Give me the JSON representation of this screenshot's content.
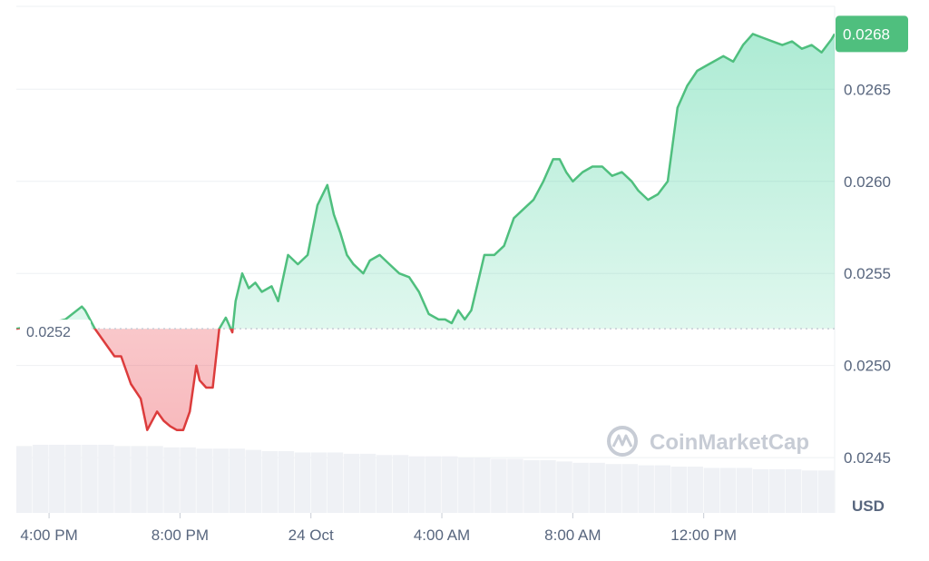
{
  "colors": {
    "up": "#16c784",
    "up_line": "#4fbf7e",
    "down_line": "#dc3c3c",
    "up_fill": "#cfeedd",
    "down_fill": "#f6c9c9",
    "grid": "#eef0f3",
    "volume": "#eff1f5",
    "text": "#58667e"
  },
  "watermark": {
    "text": "CoinMarketCap",
    "icon": "coinmarketcap-logo-icon"
  },
  "chart_data": {
    "type": "area",
    "currency": "USD",
    "ylim": [
      0.0242,
      0.02695
    ],
    "yticks": [
      {
        "value": 0.0245,
        "label": "0.0245"
      },
      {
        "value": 0.025,
        "label": "0.0250"
      },
      {
        "value": 0.0255,
        "label": "0.0255"
      },
      {
        "value": 0.026,
        "label": "0.0260"
      },
      {
        "value": 0.0265,
        "label": "0.0265"
      }
    ],
    "xticks": [
      {
        "hour": 0,
        "label": "4:00 PM"
      },
      {
        "hour": 4,
        "label": "8:00 PM"
      },
      {
        "hour": 8,
        "label": "24 Oct"
      },
      {
        "hour": 12,
        "label": "4:00 AM"
      },
      {
        "hour": 16,
        "label": "8:00 AM"
      },
      {
        "hour": 20,
        "label": "12:00 PM"
      }
    ],
    "baseline": {
      "value": 0.0252,
      "label": "0.0252"
    },
    "last_price": {
      "value": 0.0268,
      "label": "0.0268"
    },
    "x_hours": [
      -1,
      -0.2,
      0.5,
      1.0,
      1.1,
      1.4,
      1.8,
      2.0,
      2.2,
      2.5,
      2.8,
      3.0,
      3.3,
      3.5,
      3.7,
      3.9,
      4.1,
      4.3,
      4.5,
      4.6,
      4.8,
      5.0,
      5.2,
      5.4,
      5.6,
      5.7,
      5.9,
      6.1,
      6.3,
      6.5,
      6.8,
      7.0,
      7.3,
      7.6,
      7.9,
      8.2,
      8.5,
      8.7,
      8.9,
      9.1,
      9.3,
      9.6,
      9.8,
      10.1,
      10.4,
      10.7,
      11.0,
      11.3,
      11.6,
      11.9,
      12.1,
      12.3,
      12.5,
      12.7,
      12.9,
      13.1,
      13.3,
      13.6,
      13.9,
      14.2,
      14.5,
      14.8,
      15.1,
      15.4,
      15.6,
      15.8,
      16.0,
      16.3,
      16.6,
      16.9,
      17.2,
      17.5,
      17.8,
      18.0,
      18.3,
      18.6,
      18.9,
      19.2,
      19.5,
      19.8,
      20.1,
      20.3,
      20.6,
      20.9,
      21.2,
      21.5,
      21.8,
      22.1,
      22.4,
      22.7,
      23.0,
      23.3,
      23.6,
      23.9,
      24.0
    ],
    "price": [
      0.0252,
      0.02522,
      0.02525,
      0.02532,
      0.0253,
      0.0252,
      0.0251,
      0.02505,
      0.02505,
      0.0249,
      0.02482,
      0.02465,
      0.02475,
      0.0247,
      0.02467,
      0.02465,
      0.02465,
      0.02475,
      0.025,
      0.02492,
      0.02488,
      0.02488,
      0.0252,
      0.02526,
      0.02518,
      0.02535,
      0.0255,
      0.02542,
      0.02545,
      0.0254,
      0.02543,
      0.02535,
      0.0256,
      0.02555,
      0.0256,
      0.02587,
      0.02598,
      0.02582,
      0.02572,
      0.0256,
      0.02555,
      0.0255,
      0.02557,
      0.0256,
      0.02555,
      0.0255,
      0.02548,
      0.0254,
      0.02528,
      0.02525,
      0.02525,
      0.02523,
      0.0253,
      0.02525,
      0.0253,
      0.02545,
      0.0256,
      0.0256,
      0.02565,
      0.0258,
      0.02585,
      0.0259,
      0.026,
      0.02612,
      0.02612,
      0.02605,
      0.026,
      0.02605,
      0.02608,
      0.02608,
      0.02603,
      0.02605,
      0.026,
      0.02595,
      0.0259,
      0.02593,
      0.026,
      0.0264,
      0.02652,
      0.0266,
      0.02663,
      0.02665,
      0.02668,
      0.02665,
      0.02674,
      0.0268,
      0.02678,
      0.02676,
      0.02674,
      0.02676,
      0.02672,
      0.02674,
      0.0267,
      0.02677,
      0.0268
    ],
    "volume_rel": [
      0.52,
      0.53,
      0.53,
      0.53,
      0.53,
      0.53,
      0.52,
      0.52,
      0.52,
      0.51,
      0.51,
      0.5,
      0.5,
      0.5,
      0.49,
      0.48,
      0.48,
      0.47,
      0.47,
      0.47,
      0.46,
      0.46,
      0.45,
      0.45,
      0.44,
      0.44,
      0.44,
      0.43,
      0.43,
      0.42,
      0.42,
      0.41,
      0.41,
      0.4,
      0.39,
      0.39,
      0.38,
      0.38,
      0.37,
      0.37,
      0.36,
      0.36,
      0.35,
      0.35,
      0.35,
      0.34,
      0.34,
      0.34,
      0.33,
      0.33
    ]
  }
}
